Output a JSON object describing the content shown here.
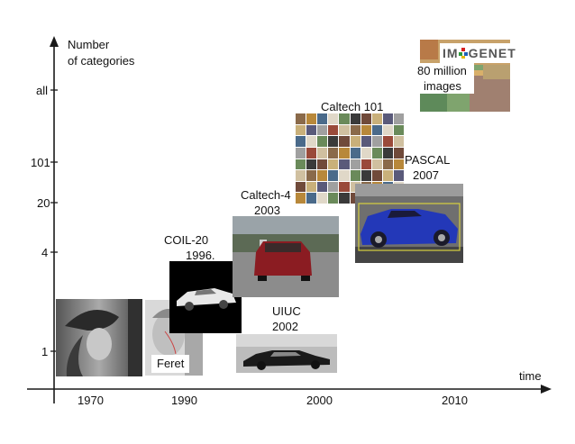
{
  "axes": {
    "y_label_line1": "Number",
    "y_label_line2": "of categories",
    "x_label": "time"
  },
  "y_ticks": [
    "all",
    "101",
    "20",
    "4",
    "1"
  ],
  "x_ticks": [
    "1970",
    "1990",
    "2000",
    "2010"
  ],
  "datasets": [
    {
      "name_line1": "COIL-20",
      "name_line2": "1996."
    },
    {
      "name_line1": "Caltech-4",
      "name_line2": "2003"
    },
    {
      "name_line1": "Caltech 101",
      "name_line2": ""
    },
    {
      "name_line1": "PASCAL",
      "name_line2": "2007"
    },
    {
      "name_line1": "UIUC",
      "name_line2": "2002"
    },
    {
      "name_line1": "Feret",
      "name_line2": ""
    },
    {
      "name_line1": "80 million",
      "name_line2": "images"
    }
  ],
  "imagenet_logo": {
    "part1": "IM",
    "part2": "GENET"
  },
  "colors": {
    "axis": "#1a1a1a",
    "logo_red": "#d6201e",
    "logo_green": "#2e9a3c",
    "logo_blue": "#2060b8",
    "logo_yellow": "#e8b800"
  }
}
